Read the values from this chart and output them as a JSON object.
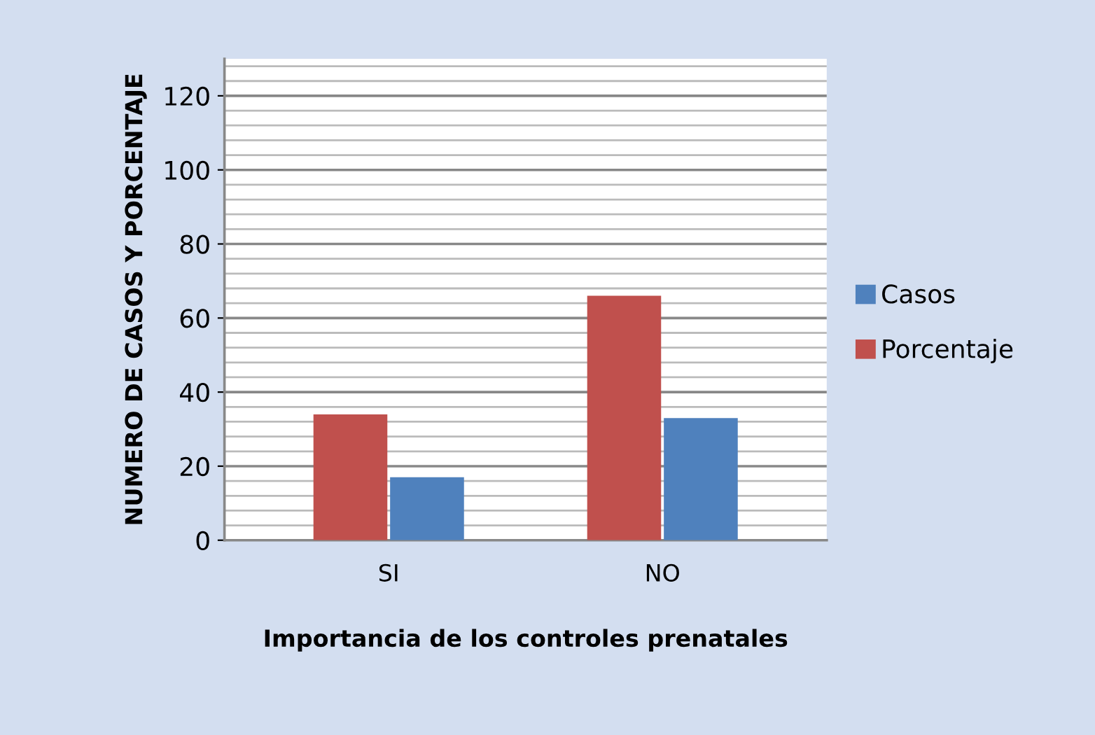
{
  "chart_data": {
    "type": "bar",
    "xlabel": "Importancia de los controles prenatales",
    "ylabel": "NUMERO DE CASOS Y PORCENTAJE",
    "categories": [
      "SI",
      "NO"
    ],
    "series": [
      {
        "name": "Porcentaje",
        "color": "#c0504d",
        "values": [
          34,
          66
        ]
      },
      {
        "name": "Casos",
        "color": "#4f81bd",
        "values": [
          17,
          33
        ]
      }
    ],
    "ylim": [
      0,
      130
    ],
    "yticks": [
      0,
      20,
      40,
      60,
      80,
      100,
      120
    ],
    "grid": "y",
    "legend": "right"
  }
}
